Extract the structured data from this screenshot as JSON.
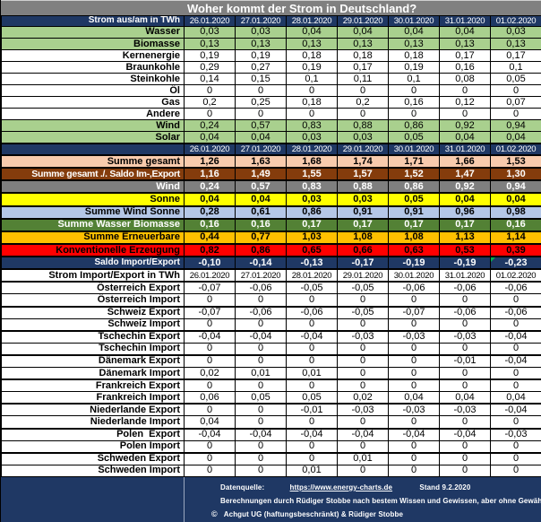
{
  "title": "Woher kommt der Strom in Deutschland?",
  "chart_data": {
    "type": "table",
    "title": "Woher kommt der Strom in Deutschland?",
    "columns": [
      "26.01.2020",
      "27.01.2020",
      "28.01.2020",
      "29.01.2020",
      "30.01.2020",
      "31.01.2020",
      "01.02.2020"
    ],
    "unit": "TWh",
    "rows": [
      {
        "kind": "header",
        "label": "Strom aus/am in TWh",
        "style": "navy"
      },
      {
        "kind": "data",
        "label": "Wasser",
        "style": "green",
        "values": [
          "0,03",
          "0,03",
          "0,04",
          "0,04",
          "0,04",
          "0,04",
          "0,03"
        ]
      },
      {
        "kind": "data",
        "label": "Biomasse",
        "style": "green",
        "values": [
          "0,13",
          "0,13",
          "0,13",
          "0,13",
          "0,13",
          "0,13",
          "0,13"
        ]
      },
      {
        "kind": "data",
        "label": "Kernenergie",
        "style": "white",
        "values": [
          "0,19",
          "0,19",
          "0,18",
          "0,18",
          "0,18",
          "0,17",
          "0,17"
        ]
      },
      {
        "kind": "data",
        "label": "Braunkohle",
        "style": "white",
        "values": [
          "0,29",
          "0,27",
          "0,19",
          "0,17",
          "0,19",
          "0,16",
          "0,1"
        ]
      },
      {
        "kind": "data",
        "label": "Steinkohle",
        "style": "white",
        "values": [
          "0,14",
          "0,15",
          "0,1",
          "0,11",
          "0,1",
          "0,08",
          "0,05"
        ]
      },
      {
        "kind": "data",
        "label": "Öl",
        "style": "white",
        "values": [
          "0",
          "0",
          "0",
          "0",
          "0",
          "0",
          "0"
        ]
      },
      {
        "kind": "data",
        "label": "Gas",
        "style": "white",
        "values": [
          "0,2",
          "0,25",
          "0,18",
          "0,2",
          "0,16",
          "0,12",
          "0,07"
        ]
      },
      {
        "kind": "data",
        "label": "Andere",
        "style": "white",
        "values": [
          "0",
          "0",
          "0",
          "0",
          "0",
          "0",
          "0"
        ]
      },
      {
        "kind": "data",
        "label": "Wind",
        "style": "green",
        "values": [
          "0,24",
          "0,57",
          "0,83",
          "0,88",
          "0,86",
          "0,92",
          "0,94"
        ]
      },
      {
        "kind": "data",
        "label": "Solar",
        "style": "green",
        "values": [
          "0,04",
          "0,04",
          "0,03",
          "0,03",
          "0,05",
          "0,04",
          "0,04"
        ]
      },
      {
        "kind": "header",
        "label": "",
        "style": "navy",
        "thick": true
      },
      {
        "kind": "data",
        "label": "Summe gesamt",
        "style": "peach",
        "bold": true,
        "thick": true,
        "values": [
          "1,26",
          "1,63",
          "1,68",
          "1,74",
          "1,71",
          "1,66",
          "1,53"
        ]
      },
      {
        "kind": "data",
        "label": "Summe gesamt ./. Saldo Im-,Export",
        "style": "brown",
        "bold": true,
        "thick": true,
        "values": [
          "1,16",
          "1,49",
          "1,55",
          "1,57",
          "1,52",
          "1,47",
          "1,30"
        ]
      },
      {
        "kind": "data",
        "label": "Wind",
        "style": "gray",
        "bold": true,
        "thick": true,
        "values": [
          "0,24",
          "0,57",
          "0,83",
          "0,88",
          "0,86",
          "0,92",
          "0,94"
        ]
      },
      {
        "kind": "data",
        "label": "Sonne",
        "style": "yellow",
        "bold": true,
        "thick": true,
        "values": [
          "0,04",
          "0,04",
          "0,03",
          "0,03",
          "0,05",
          "0,04",
          "0,04"
        ]
      },
      {
        "kind": "data",
        "label": "Summe Wind Sonne",
        "style": "bluegray",
        "bold": true,
        "thick": true,
        "values": [
          "0,28",
          "0,61",
          "0,86",
          "0,91",
          "0,91",
          "0,96",
          "0,98"
        ]
      },
      {
        "kind": "data",
        "label": "Summe Wasser Biomasse",
        "style": "dkgreen",
        "bold": true,
        "thick": true,
        "values": [
          "0,16",
          "0,16",
          "0,17",
          "0,17",
          "0,17",
          "0,17",
          "0,16"
        ]
      },
      {
        "kind": "data",
        "label": "Summe Erneuerbare",
        "style": "orange",
        "bold": true,
        "thick": true,
        "values": [
          "0,44",
          "0,77",
          "1,03",
          "1,08",
          "1,08",
          "1,13",
          "1,14"
        ]
      },
      {
        "kind": "data",
        "label": "Konventionelle Erzeugung",
        "style": "red",
        "bold": true,
        "thick": true,
        "values": [
          "0,82",
          "0,86",
          "0,65",
          "0,66",
          "0,63",
          "0,53",
          "0,39"
        ]
      },
      {
        "kind": "data",
        "label": "Saldo Import/Export",
        "style": "navybold",
        "bold": true,
        "thick": true,
        "note_corner": true,
        "values": [
          "-0,10",
          "-0,14",
          "-0,13",
          "-0,17",
          "-0,19",
          "-0,19",
          "-0,23"
        ]
      },
      {
        "kind": "header",
        "label": "Strom Import/Export in TWh",
        "style": "whitehdr",
        "thick": true
      },
      {
        "kind": "data",
        "label": "Österreich Export",
        "style": "white",
        "values": [
          "-0,07",
          "-0,06",
          "-0,05",
          "-0,05",
          "-0,06",
          "-0,06",
          "-0,06"
        ]
      },
      {
        "kind": "data",
        "label": "Österreich Import",
        "style": "white",
        "values": [
          "0",
          "0",
          "0",
          "0",
          "0",
          "0",
          "0"
        ]
      },
      {
        "kind": "data",
        "label": "Schweiz Export",
        "style": "white",
        "group_start": true,
        "values": [
          "-0,07",
          "-0,06",
          "-0,06",
          "-0,05",
          "-0,07",
          "-0,06",
          "-0,06"
        ]
      },
      {
        "kind": "data",
        "label": "Schweiz Import",
        "style": "white",
        "values": [
          "0",
          "0",
          "0",
          "0",
          "0",
          "0",
          "0"
        ]
      },
      {
        "kind": "data",
        "label": "Tschechin Export",
        "style": "white",
        "group_start": true,
        "values": [
          "-0,04",
          "-0,04",
          "-0,04",
          "-0,03",
          "-0,03",
          "-0,03",
          "-0,04"
        ]
      },
      {
        "kind": "data",
        "label": "Tschechin Import",
        "style": "white",
        "values": [
          "0",
          "0",
          "0",
          "0",
          "0",
          "0",
          "0"
        ]
      },
      {
        "kind": "data",
        "label": "Dänemark Export",
        "style": "white",
        "group_start": true,
        "values": [
          "0",
          "0",
          "0",
          "0",
          "0",
          "-0,01",
          "-0,04"
        ]
      },
      {
        "kind": "data",
        "label": "Dänemark Import",
        "style": "white",
        "values": [
          "0,02",
          "0,01",
          "0,01",
          "0",
          "0",
          "0",
          "0"
        ]
      },
      {
        "kind": "data",
        "label": "Frankreich Export",
        "style": "white",
        "group_start": true,
        "values": [
          "0",
          "0",
          "0",
          "0",
          "0",
          "0",
          "0"
        ]
      },
      {
        "kind": "data",
        "label": "Frankreich Import",
        "style": "white",
        "values": [
          "0,06",
          "0,05",
          "0,05",
          "0,02",
          "0,04",
          "0,04",
          "0,04"
        ]
      },
      {
        "kind": "data",
        "label": "Niederlande Export",
        "style": "white",
        "group_start": true,
        "values": [
          "0",
          "0",
          "-0,01",
          "-0,03",
          "-0,03",
          "-0,03",
          "-0,04"
        ]
      },
      {
        "kind": "data",
        "label": "Niederlande Import",
        "style": "white",
        "values": [
          "0,04",
          "0",
          "0",
          "0",
          "0",
          "0",
          "0"
        ]
      },
      {
        "kind": "data",
        "label": "Polen  Export",
        "style": "white",
        "group_start": true,
        "values": [
          "-0,04",
          "-0,04",
          "-0,04",
          "-0,04",
          "-0,04",
          "-0,04",
          "-0,03"
        ]
      },
      {
        "kind": "data",
        "label": "Polen Import",
        "style": "white",
        "values": [
          "0",
          "0",
          "0",
          "0",
          "0",
          "0",
          "0"
        ]
      },
      {
        "kind": "data",
        "label": "Schweden Export",
        "style": "white",
        "group_start": true,
        "values": [
          "0",
          "0",
          "0",
          "0,01",
          "0",
          "0",
          "0"
        ]
      },
      {
        "kind": "data",
        "label": "Schweden Import",
        "style": "white",
        "values": [
          "0",
          "0",
          "0,01",
          "0",
          "0",
          "0",
          "0"
        ]
      }
    ]
  },
  "footer": {
    "datasource_label": "Datenquelle:",
    "datasource_url": "https://www.energy-charts.de",
    "stand": "Stand 9.2.2020",
    "line2": "Berechnungen durch Rüdiger Stobbe nach bestem Wissen und Gewissen, aber ohne Gewähr",
    "copyright_symbol": "©",
    "line3": "Achgut UG (haftungsbeschränkt) & Rüdiger Stobbe"
  },
  "colors": {
    "header_navy": "#1F3864",
    "title_gray": "#808080",
    "renewable_green": "#A9D08E",
    "sum_peach": "#F8CBAD",
    "sum_brown": "#843C0C",
    "wind_gray": "#7F7F7F",
    "sonne_yellow": "#FFFF00",
    "wind_sonne_blue": "#B4C7E7",
    "wasser_biomasse_green": "#538135",
    "erneuerbare_orange": "#FFC000",
    "konventionell_red": "#FF0000",
    "corner_note_green": "#00B050"
  }
}
